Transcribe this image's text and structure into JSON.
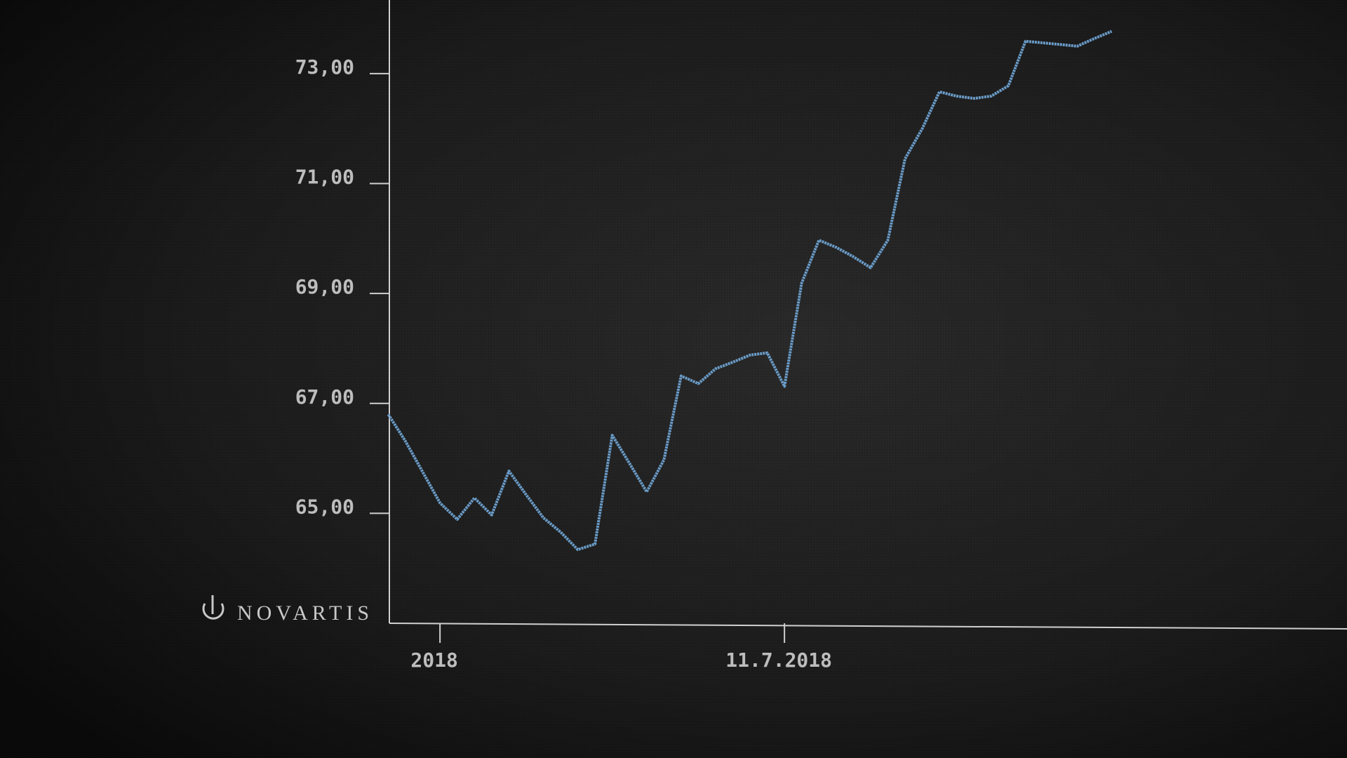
{
  "brand": "NOVARTIS",
  "chart_data": {
    "type": "line",
    "categories": [
      null,
      null,
      null,
      "2018",
      null,
      null,
      null,
      null,
      null,
      null,
      null,
      null,
      null,
      null,
      null,
      null,
      null,
      null,
      null,
      null,
      null,
      null,
      null,
      "11.7.2018",
      null,
      null,
      null,
      null,
      null,
      null,
      null,
      null,
      null,
      null,
      null,
      null,
      null,
      null,
      null,
      null,
      null,
      null,
      null
    ],
    "series": [
      {
        "color": "#6a9cc8",
        "values": [
          66.8,
          66.31,
          65.75,
          65.19,
          64.89,
          65.28,
          64.97,
          65.77,
          65.34,
          64.92,
          64.66,
          64.34,
          64.44,
          66.42,
          65.91,
          65.39,
          65.97,
          67.5,
          67.36,
          67.63,
          67.75,
          67.88,
          67.92,
          67.31,
          69.19,
          69.97,
          69.84,
          69.67,
          69.47,
          69.97,
          71.45,
          72.0,
          72.67,
          72.59,
          72.55,
          72.59,
          72.78,
          73.59,
          73.56,
          73.53,
          73.5,
          73.64,
          73.77
        ]
      }
    ],
    "ylim": [
      63,
      74.34
    ],
    "yticks": [
      {
        "value": 65,
        "label": "65,00"
      },
      {
        "value": 67,
        "label": "67,00"
      },
      {
        "value": 69,
        "label": "69,00"
      },
      {
        "value": 71,
        "label": "71,00"
      },
      {
        "value": 73,
        "label": "73,00"
      }
    ]
  }
}
